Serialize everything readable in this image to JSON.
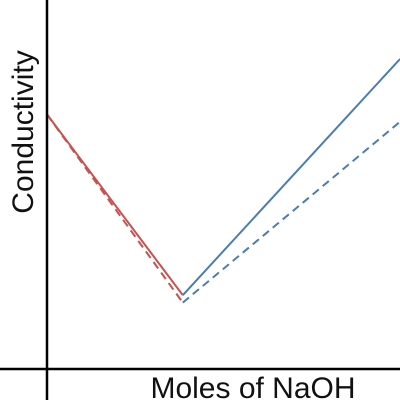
{
  "chart_data": {
    "type": "line",
    "title": "",
    "xlabel": "Moles of NaOH",
    "ylabel": "Conductivity",
    "xlim": [
      0,
      2.6
    ],
    "ylim": [
      0,
      1
    ],
    "grid": false,
    "legend": "none",
    "series": [
      {
        "style": "solid",
        "segments": [
          {
            "color": "#c9504e",
            "points": [
              [
                0,
                0.69
              ],
              [
                1.0,
                0.2
              ]
            ]
          },
          {
            "color": "#4a7db3",
            "points": [
              [
                1.0,
                0.2
              ],
              [
                2.6,
                0.84
              ]
            ]
          }
        ]
      },
      {
        "style": "dashed",
        "segments": [
          {
            "color": "#c9504e",
            "points": [
              [
                0,
                0.69
              ],
              [
                1.0,
                0.18
              ]
            ]
          },
          {
            "color": "#4a7db3",
            "points": [
              [
                1.0,
                0.18
              ],
              [
                2.6,
                0.67
              ]
            ]
          }
        ]
      }
    ]
  }
}
